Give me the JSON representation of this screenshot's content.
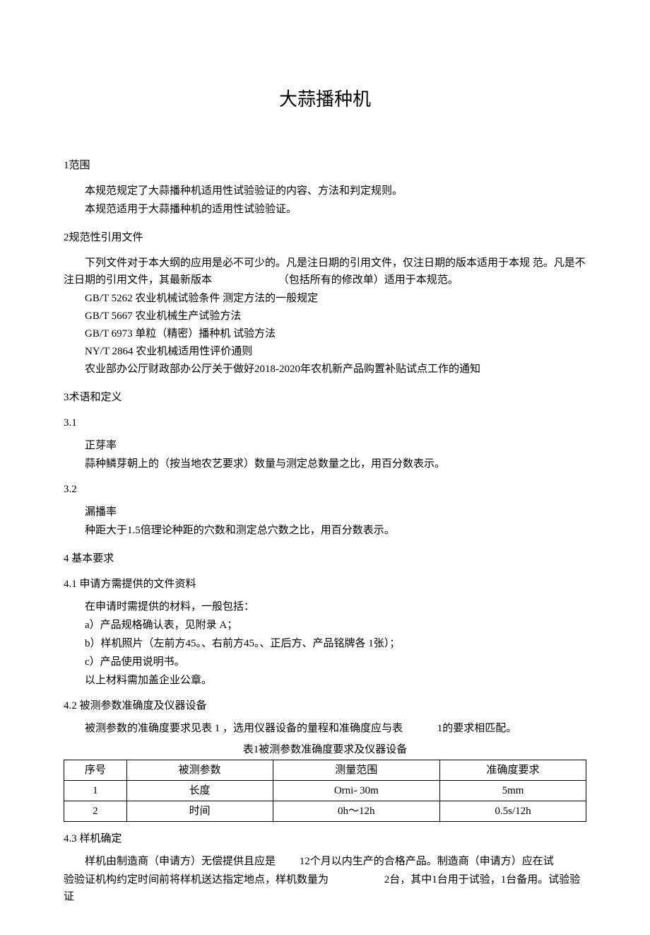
{
  "title": "大蒜播种机",
  "s1": {
    "heading": "1范围",
    "p1": "本规范规定了大蒜播种机适用性试验验证的内容、方法和判定规则。",
    "p2": "本规范适用于大蒜播种机的适用性试验验证。"
  },
  "s2": {
    "heading": "2规范性引用文件",
    "intro_a": "下列文件对于本大纲的应用是必不可少的。凡是注日期的引用文件，仅注日期的版本适用于本规 范。凡是不注日期的引用文件，其最新版本",
    "intro_b": "（包括所有的修改单）适用于本规范。",
    "refs": [
      "GB/T 5262    农业机械试验条件    测定方法的一般规定",
      "GB/T 5667    农业机械生产试验方法",
      "GB/T 6973 单粒（精密）播种机 试验方法",
      "NY/T 2864    农业机械适用性评价通则",
      "农业部办公厅财政部办公厅关于做好2018-2020年农机新产品购置补贴试点工作的通知"
    ]
  },
  "s3": {
    "heading": "3术语和定义",
    "t31_num": "3.1",
    "t31_name": "正芽率",
    "t31_def": "蒜种鳞芽朝上的（按当地农艺要求）数量与测定总数量之比，用百分数表示。",
    "t32_num": "3.2",
    "t32_name": "漏播率",
    "t32_def": "种距大于1.5倍理论种距的穴数和测定总穴数之比，用百分数表示。"
  },
  "s4": {
    "heading": "4 基本要求",
    "s41_h": "4.1  申请方需提供的文件资料",
    "s41_intro": "在申请时需提供的材料，一般包括：",
    "s41_a": "a）产品规格确认表，见附录 A；",
    "s41_b": "b）样机照片（左前方45。、右前方45。、正后方、产品铭牌各 1张）；",
    "s41_c": "c）产品使用说明书。",
    "s41_foot": "以上材料需加盖企业公章。",
    "s42_h": "4.2  被测参数准确度及仪器设备",
    "s42_p_a": "被测参数的准确度要求见表 1 ，选用仪器设备的量程和准确度应与表",
    "s42_p_b": "1的要求相匹配。",
    "table_caption": "表1被测参数准确度要求及仪器设备",
    "table": {
      "headers": [
        "序号",
        "被测参数",
        "测量范围",
        "准确度要求"
      ],
      "rows": [
        [
          "1",
          "长度",
          "Orni- 30m",
          "5mm"
        ],
        [
          "2",
          "时间",
          "0h～12h",
          "0.5s/12h"
        ]
      ]
    },
    "s43_h": "4.3  样机确定",
    "s43_p1_a": "样机由制造商（申请方）无偿提供且应是",
    "s43_p1_b": "12个月以内生产的合格产品。制造商（申请方）应在试",
    "s43_p2_a": "验验证机构约定时间前将样机送达指定地点，样机数量为",
    "s43_p2_b": "2台，其中1台用于试验，1台备用。试验验证"
  }
}
